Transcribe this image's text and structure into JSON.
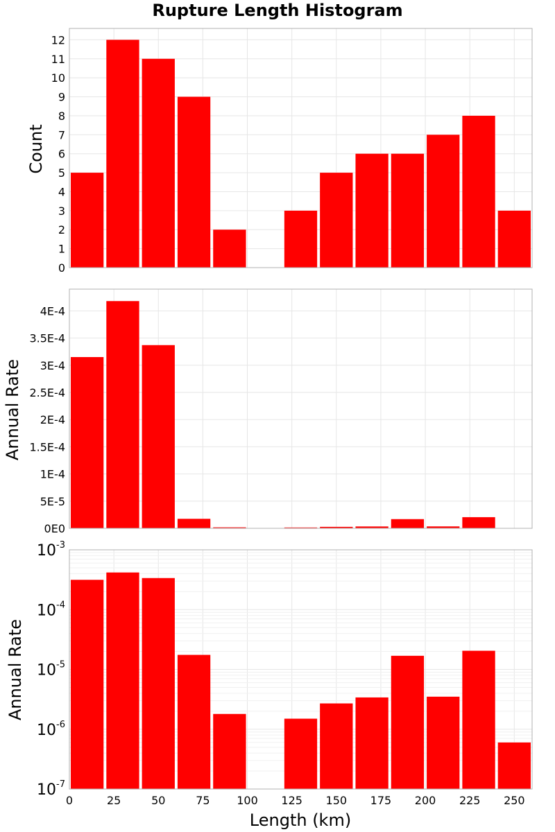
{
  "chart_data": {
    "title": "Rupture Length Histogram",
    "shared_x": {
      "label": "Length (km)",
      "range": [
        0,
        260
      ],
      "ticks": [
        0,
        25,
        50,
        75,
        100,
        125,
        150,
        175,
        200,
        225,
        250
      ],
      "bins": [
        10,
        30,
        50,
        70,
        90,
        110,
        130,
        150,
        170,
        190,
        210,
        230,
        250
      ],
      "bin_width": 20
    },
    "bar_color": "#ff0000",
    "grid": true,
    "panels": [
      {
        "type": "bar",
        "ylabel": "Count",
        "yscale": "linear",
        "ylim": [
          0,
          12.6
        ],
        "yticks": [
          0,
          1,
          2,
          3,
          4,
          5,
          6,
          7,
          8,
          9,
          10,
          11,
          12
        ],
        "ytick_labels": [
          "0",
          "1",
          "2",
          "3",
          "4",
          "5",
          "6",
          "7",
          "8",
          "9",
          "10",
          "11",
          "12"
        ],
        "values": [
          5,
          12,
          11,
          9,
          2,
          0,
          3,
          5,
          6,
          6,
          7,
          8,
          3
        ]
      },
      {
        "type": "bar",
        "ylabel": "Annual Rate",
        "yscale": "linear",
        "ylim": [
          0,
          0.00044
        ],
        "yticks": [
          0,
          5e-05,
          0.0001,
          0.00015,
          0.0002,
          0.00025,
          0.0003,
          0.00035,
          0.0004
        ],
        "ytick_labels": [
          "0E0",
          "5E-5",
          "1E-4",
          "1.5E-4",
          "2E-4",
          "2.5E-4",
          "3E-4",
          "3.5E-4",
          "4E-4"
        ],
        "values": [
          0.000315,
          0.000418,
          0.000337,
          1.75e-05,
          1.8e-06,
          0,
          1.5e-06,
          2.7e-06,
          3.4e-06,
          1.69e-05,
          3.5e-06,
          2.05e-05,
          6e-07
        ]
      },
      {
        "type": "bar",
        "ylabel": "Annual Rate",
        "yscale": "log",
        "ylim": [
          1e-07,
          0.001
        ],
        "yticks": [
          1e-07,
          1e-06,
          1e-05,
          0.0001,
          0.001
        ],
        "ytick_labels": [
          {
            "base": "10",
            "exp": "-7"
          },
          {
            "base": "10",
            "exp": "-6"
          },
          {
            "base": "10",
            "exp": "-5"
          },
          {
            "base": "10",
            "exp": "-4"
          },
          {
            "base": "10",
            "exp": "-3"
          }
        ],
        "values": [
          0.000315,
          0.000418,
          0.000337,
          1.75e-05,
          1.8e-06,
          0,
          1.5e-06,
          2.7e-06,
          3.4e-06,
          1.69e-05,
          3.5e-06,
          2.05e-05,
          6e-07
        ]
      }
    ]
  }
}
